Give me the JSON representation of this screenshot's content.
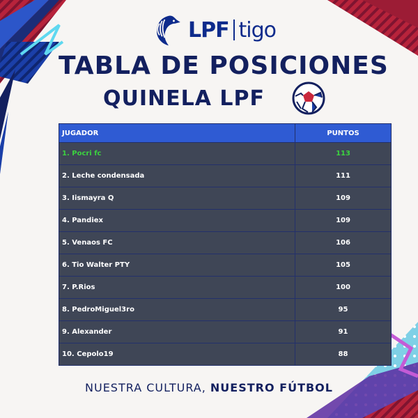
{
  "brand": {
    "lpf": "LPF",
    "sponsor": "tigo"
  },
  "title": "TABLA DE POSICIONES",
  "subtitle": "QUINELA LPF",
  "table": {
    "headers": [
      "JUGADOR",
      "PUNTOS"
    ],
    "rows": [
      {
        "player": "1. Pocri fc",
        "points": "113"
      },
      {
        "player": "2. Leche condensada",
        "points": "111"
      },
      {
        "player": "3. Iismayra Q",
        "points": "109"
      },
      {
        "player": "4. Pandiex",
        "points": "109"
      },
      {
        "player": "5. Venaos FC",
        "points": "106"
      },
      {
        "player": "6. Tio Walter PTY",
        "points": "105"
      },
      {
        "player": "7. P.Rios",
        "points": "100"
      },
      {
        "player": "8. PedroMiguel3ro",
        "points": "95"
      },
      {
        "player": "9. Alexander",
        "points": "91"
      },
      {
        "player": "10. Cepolo19",
        "points": "88"
      }
    ]
  },
  "footer": {
    "regular": "NUESTRA CULTURA, ",
    "bold": "NUESTRO FÚTBOL"
  },
  "colors": {
    "navy": "#13205f",
    "header_blue": "#2f5bd3",
    "row_bg": "#3f4656",
    "leader_green": "#3bd23f",
    "accent_red": "#c9283d"
  },
  "icons": [
    "eagle-logo-icon",
    "soccer-ball-icon"
  ]
}
